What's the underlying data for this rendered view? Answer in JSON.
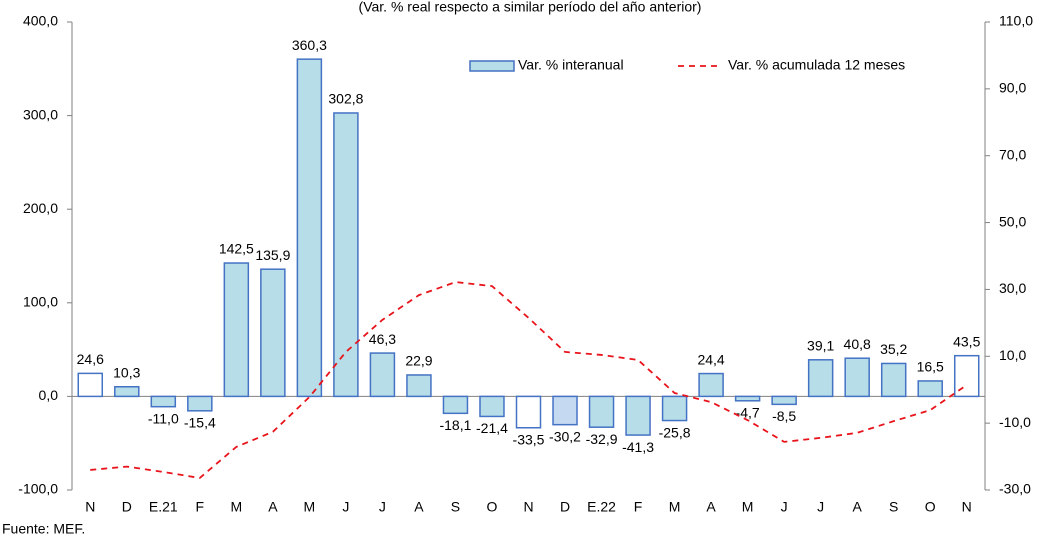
{
  "chart_data": {
    "type": "bar",
    "title": "(Var. % real respecto a similar período del año anterior)",
    "source": "Fuente: MEF.",
    "categories": [
      "N",
      "D",
      "E.21",
      "F",
      "M",
      "A",
      "M",
      "J",
      "J",
      "A",
      "S",
      "O",
      "N",
      "D",
      "E.22",
      "F",
      "M",
      "A",
      "M",
      "J",
      "J",
      "A",
      "S",
      "O",
      "N"
    ],
    "series": [
      {
        "name": "Var. % interanual",
        "type": "bar",
        "color": "#b7dde8",
        "edge_color": "#4472c4",
        "bar_colors": [
          "#ffffff",
          "#b7dde8",
          "#b7dde8",
          "#b7dde8",
          "#b7dde8",
          "#b7dde8",
          "#b7dde8",
          "#b7dde8",
          "#b7dde8",
          "#b7dde8",
          "#b7dde8",
          "#b7dde8",
          "#ffffff",
          "#c5d9f1",
          "#b7dde8",
          "#b7dde8",
          "#b7dde8",
          "#b7dde8",
          "#b7dde8",
          "#b7dde8",
          "#b7dde8",
          "#b7dde8",
          "#b7dde8",
          "#b7dde8",
          "#ffffff"
        ],
        "values": [
          24.6,
          10.3,
          -11.0,
          -15.4,
          142.5,
          135.9,
          360.3,
          302.8,
          46.3,
          22.9,
          -18.1,
          -21.4,
          -33.5,
          -30.2,
          -32.9,
          -41.3,
          -25.8,
          24.4,
          -4.7,
          -8.5,
          39.1,
          40.8,
          35.2,
          16.5,
          43.5
        ],
        "value_labels": [
          "24,6",
          "10,3",
          "-11,0",
          "-15,4",
          "142,5",
          "135,9",
          "360,3",
          "302,8",
          "46,3",
          "22,9",
          "-18,1",
          "-21,4",
          "-33,5",
          "-30,2",
          "-32,9",
          "-41,3",
          "-25,8",
          "24,4",
          "-4,7",
          "-8,5",
          "39,1",
          "40,8",
          "35,2",
          "16,5",
          "43,5"
        ]
      },
      {
        "name": "Var. % acumulada 12 meses",
        "type": "line",
        "axis": "y2",
        "color": "#e8141b",
        "dashed": true,
        "values": [
          -24,
          -23,
          -24.6,
          -26.4,
          -17.1,
          -12.6,
          -2.2,
          11.3,
          20.9,
          28.3,
          32.2,
          31.0,
          21.5,
          11.3,
          10.4,
          8.9,
          -1.0,
          -3.7,
          -9.1,
          -15.6,
          -14.4,
          -12.9,
          -9.4,
          -6.1,
          1.4
        ]
      }
    ],
    "ylim": [
      -100,
      400
    ],
    "yticks": [
      {
        "value": -100,
        "label": "-100,0"
      },
      {
        "value": 0,
        "label": "0,0"
      },
      {
        "value": 100,
        "label": "100,0"
      },
      {
        "value": 200,
        "label": "200,0"
      },
      {
        "value": 300,
        "label": "300,0"
      },
      {
        "value": 400,
        "label": "400,0"
      }
    ],
    "y2lim": [
      -30,
      110
    ],
    "y2ticks": [
      {
        "value": -30,
        "label": "-30,0"
      },
      {
        "value": -10,
        "label": "-10,0"
      },
      {
        "value": 10,
        "label": "10,0"
      },
      {
        "value": 30,
        "label": "30,0"
      },
      {
        "value": 50,
        "label": "50,0"
      },
      {
        "value": 70,
        "label": "70,0"
      },
      {
        "value": 90,
        "label": "90,0"
      },
      {
        "value": 110,
        "label": "110,0"
      }
    ],
    "legend": "upper right"
  }
}
